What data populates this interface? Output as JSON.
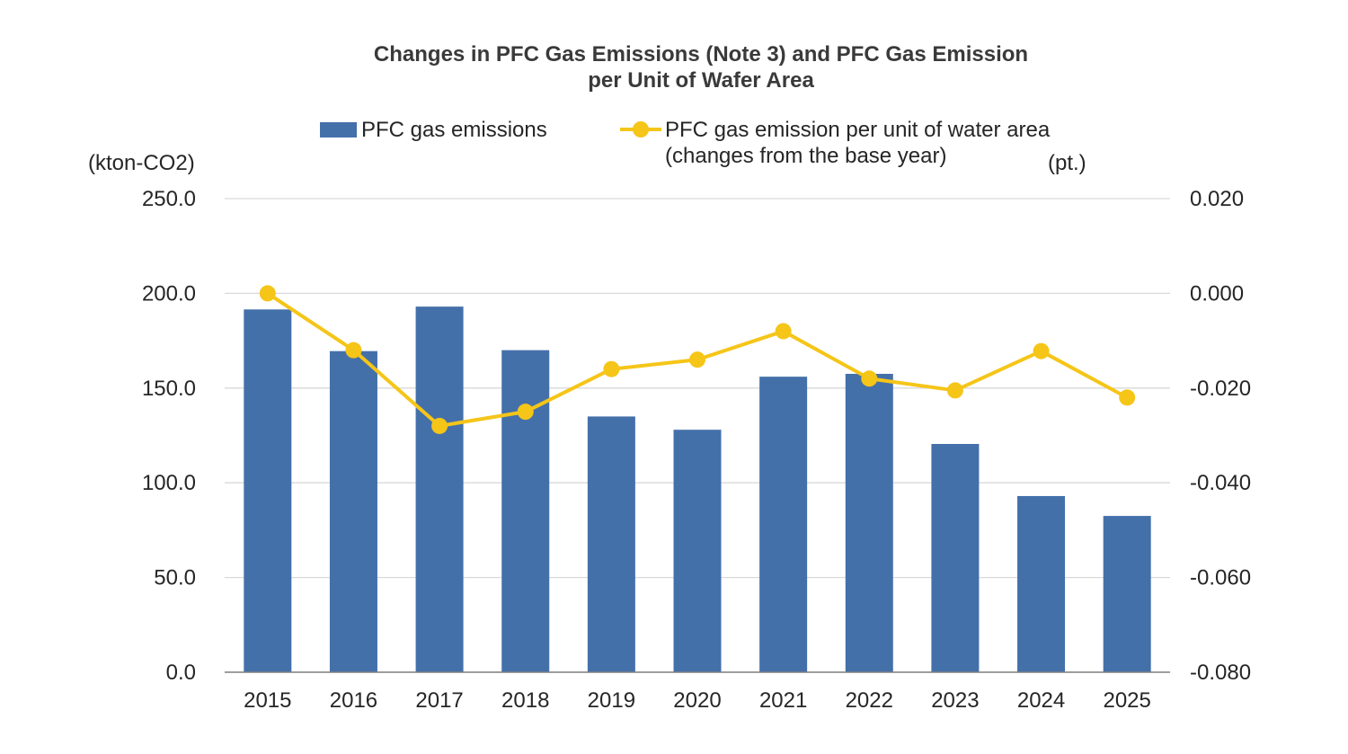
{
  "chart_data": {
    "type": "bar+line",
    "title_line1": "Changes in PFC Gas Emissions (Note 3) and PFC Gas Emission",
    "title_line2": "per Unit of Wafer Area",
    "left_unit": "(kton-CO2)",
    "right_unit": "(pt.)",
    "categories": [
      "2015",
      "2016",
      "2017",
      "2018",
      "2019",
      "2020",
      "2021",
      "2022",
      "2023",
      "2024",
      "2025"
    ],
    "series": [
      {
        "name": "PFC gas emissions",
        "type": "bar",
        "axis": "left",
        "color": "#4470AA",
        "values": [
          191.5,
          169.5,
          193.0,
          170.0,
          135.0,
          128.0,
          156.0,
          157.5,
          120.5,
          93.0,
          82.5
        ]
      },
      {
        "name_line1": "PFC gas emission per unit of water area",
        "name_line2": "(changes from the base year)",
        "type": "line",
        "axis": "right",
        "color": "#F5C518",
        "values": [
          0.0,
          -0.012,
          -0.028,
          -0.025,
          -0.016,
          -0.014,
          -0.008,
          -0.018,
          -0.0205,
          -0.0122,
          -0.022
        ]
      }
    ],
    "left_axis": {
      "min": 0,
      "max": 250,
      "ticks": [
        "0.0",
        "50.0",
        "100.0",
        "150.0",
        "200.0",
        "250.0"
      ]
    },
    "right_axis": {
      "min": -0.08,
      "max": 0.02,
      "ticks": [
        "-0.080",
        "-0.060",
        "-0.040",
        "-0.020",
        "0.000",
        "0.020"
      ]
    },
    "grid": true,
    "legend_position": "top"
  }
}
